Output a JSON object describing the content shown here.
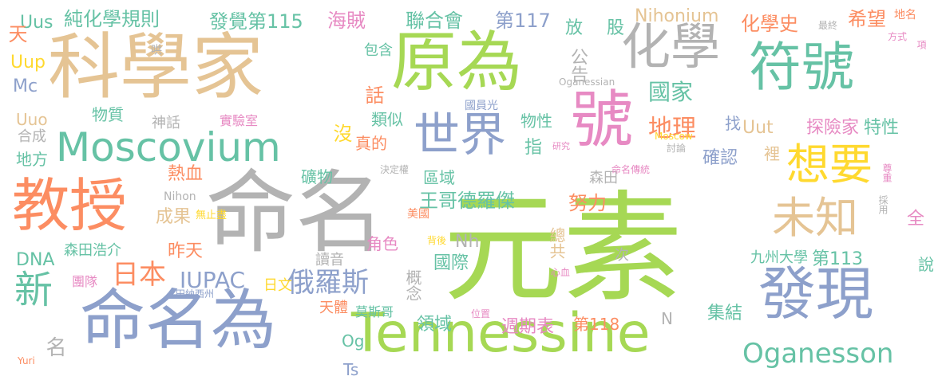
{
  "palette": {
    "green": "#a6d854",
    "gray": "#b3b3b3",
    "tan": "#e5c494",
    "blue": "#8da0cb",
    "teal": "#66c2a5",
    "orange": "#fc8d62",
    "pink": "#e78ac3",
    "yellow": "#ffd92f"
  },
  "words": [
    {
      "text": "元素",
      "color": "green"
    },
    {
      "text": "命名",
      "color": "gray"
    },
    {
      "text": "科學家",
      "color": "tan"
    },
    {
      "text": "Tennessine",
      "color": "green"
    },
    {
      "text": "原為",
      "color": "green"
    },
    {
      "text": "命名為",
      "color": "blue"
    },
    {
      "text": "發現",
      "color": "blue"
    },
    {
      "text": "教授",
      "color": "orange"
    },
    {
      "text": "符號",
      "color": "teal"
    },
    {
      "text": "化學",
      "color": "gray"
    },
    {
      "text": "號",
      "color": "pink"
    },
    {
      "text": "世界",
      "color": "blue"
    },
    {
      "text": "Moscovium",
      "color": "teal"
    },
    {
      "text": "想要",
      "color": "yellow"
    },
    {
      "text": "未知",
      "color": "tan"
    },
    {
      "text": "新",
      "color": "teal"
    },
    {
      "text": "Oganesson",
      "color": "teal"
    },
    {
      "text": "俄羅斯",
      "color": "blue"
    },
    {
      "text": "日本",
      "color": "orange"
    },
    {
      "text": "IUPAC",
      "color": "blue"
    },
    {
      "text": "地理",
      "color": "orange"
    },
    {
      "text": "國家",
      "color": "teal"
    },
    {
      "text": "化學史",
      "color": "orange"
    },
    {
      "text": "希望",
      "color": "orange"
    },
    {
      "text": "純化學規則",
      "color": "teal"
    },
    {
      "text": "發覺第115",
      "color": "teal"
    },
    {
      "text": "海賊",
      "color": "pink"
    },
    {
      "text": "聯合會",
      "color": "teal"
    },
    {
      "text": "第117",
      "color": "blue"
    },
    {
      "text": "Nihonium",
      "color": "tan"
    },
    {
      "text": "王哥德羅傑",
      "color": "teal"
    },
    {
      "text": "探險家",
      "color": "pink"
    },
    {
      "text": "特性",
      "color": "teal"
    },
    {
      "text": "Uut",
      "color": "tan"
    },
    {
      "text": "確認",
      "color": "blue"
    },
    {
      "text": "熱血",
      "color": "orange"
    },
    {
      "text": "成果",
      "color": "tan"
    },
    {
      "text": "努力",
      "color": "orange"
    },
    {
      "text": "第113",
      "color": "teal"
    },
    {
      "text": "國際",
      "color": "teal"
    },
    {
      "text": "週期表",
      "color": "pink"
    },
    {
      "text": "領域",
      "color": "teal"
    },
    {
      "text": "集結",
      "color": "teal"
    },
    {
      "text": "DNA",
      "color": "teal"
    },
    {
      "text": "昨天",
      "color": "orange"
    },
    {
      "text": "Uus",
      "color": "teal"
    },
    {
      "text": "Uup",
      "color": "yellow"
    },
    {
      "text": "Mc",
      "color": "blue"
    },
    {
      "text": "Uuo",
      "color": "tan"
    },
    {
      "text": "天",
      "color": "orange"
    },
    {
      "text": "物質",
      "color": "teal"
    },
    {
      "text": "神話",
      "color": "gray"
    },
    {
      "text": "實驗室",
      "color": "pink"
    },
    {
      "text": "合成",
      "color": "gray"
    },
    {
      "text": "地方",
      "color": "teal"
    },
    {
      "text": "包含",
      "color": "teal"
    },
    {
      "text": "話",
      "color": "orange"
    },
    {
      "text": "類似",
      "color": "teal"
    },
    {
      "text": "沒",
      "color": "yellow"
    },
    {
      "text": "真的",
      "color": "orange"
    },
    {
      "text": "物性",
      "color": "teal"
    },
    {
      "text": "指",
      "color": "teal"
    },
    {
      "text": "公告",
      "color": "gray"
    },
    {
      "text": "放",
      "color": "teal"
    },
    {
      "text": "股",
      "color": "teal"
    },
    {
      "text": "找",
      "color": "blue"
    },
    {
      "text": "裡",
      "color": "tan"
    },
    {
      "text": "礦物",
      "color": "teal"
    },
    {
      "text": "區域",
      "color": "teal"
    },
    {
      "text": "森田",
      "color": "gray"
    },
    {
      "text": "森田浩介",
      "color": "teal"
    },
    {
      "text": "九州大學",
      "color": "teal"
    },
    {
      "text": "Nh",
      "color": "gray"
    },
    {
      "text": "角色",
      "color": "pink"
    },
    {
      "text": "總共",
      "color": "tan"
    },
    {
      "text": "讀音",
      "color": "gray"
    },
    {
      "text": "日文",
      "color": "yellow"
    },
    {
      "text": "天體",
      "color": "orange"
    },
    {
      "text": "莫斯哥",
      "color": "teal"
    },
    {
      "text": "概念",
      "color": "gray"
    },
    {
      "text": "第118",
      "color": "orange"
    },
    {
      "text": "N",
      "color": "gray"
    },
    {
      "text": "Og",
      "color": "teal"
    },
    {
      "text": "Ts",
      "color": "blue"
    },
    {
      "text": "名",
      "color": "gray"
    },
    {
      "text": "說",
      "color": "teal"
    },
    {
      "text": "全",
      "color": "pink"
    },
    {
      "text": "次",
      "color": "gray"
    },
    {
      "text": "團隊",
      "color": "pink"
    },
    {
      "text": "Nihon",
      "color": "gray"
    },
    {
      "text": "無止盡",
      "color": "yellow"
    },
    {
      "text": "美國",
      "color": "orange"
    },
    {
      "text": "背後",
      "color": "yellow"
    },
    {
      "text": "位置",
      "color": "pink"
    },
    {
      "text": "心血",
      "color": "pink"
    },
    {
      "text": "田納西州",
      "color": "blue"
    },
    {
      "text": "Moscow",
      "color": "yellow"
    },
    {
      "text": "Yuri",
      "color": "orange"
    },
    {
      "text": "國員光",
      "color": "blue"
    },
    {
      "text": "研究",
      "color": "pink"
    },
    {
      "text": "討論",
      "color": "gray"
    },
    {
      "text": "決定權",
      "color": "gray"
    },
    {
      "text": "命名傳統",
      "color": "pink"
    },
    {
      "text": "採用",
      "color": "gray"
    },
    {
      "text": "尊重",
      "color": "pink"
    },
    {
      "text": "Oganessian",
      "color": "gray"
    },
    {
      "text": "哄",
      "color": "gray"
    },
    {
      "text": "最終",
      "color": "gray"
    },
    {
      "text": "地名",
      "color": "orange"
    },
    {
      "text": "方式",
      "color": "pink"
    },
    {
      "text": "項",
      "color": "pink"
    }
  ]
}
